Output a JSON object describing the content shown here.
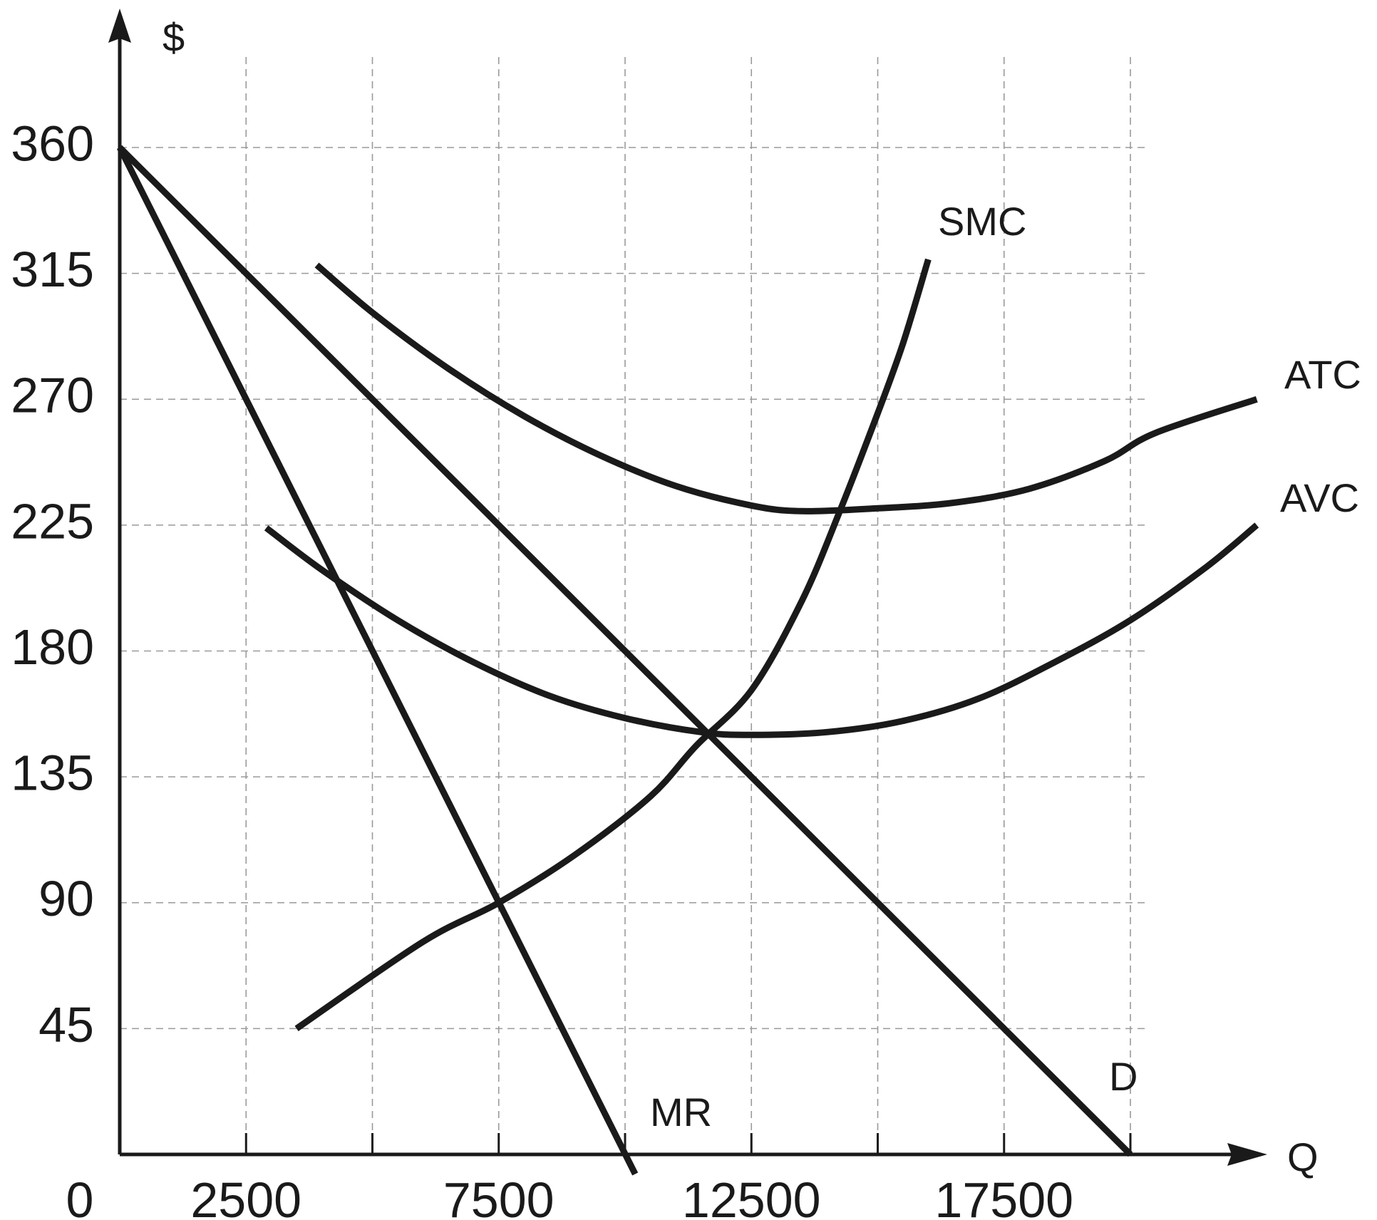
{
  "chart_data": {
    "type": "line",
    "title": "",
    "xlabel": "Q",
    "ylabel": "$",
    "xlim": [
      0,
      22500
    ],
    "ylim": [
      0,
      360
    ],
    "grid": true,
    "x_ticks": [
      2500,
      5000,
      7500,
      10000,
      12500,
      15000,
      17500,
      20000
    ],
    "x_tick_labels": [
      {
        "value": 0,
        "label": "0"
      },
      {
        "value": 2500,
        "label": "2500"
      },
      {
        "value": 7500,
        "label": "7500"
      },
      {
        "value": 12500,
        "label": "12500"
      },
      {
        "value": 17500,
        "label": "17500"
      }
    ],
    "y_ticks": [
      45,
      90,
      135,
      180,
      225,
      270,
      315,
      360
    ],
    "y_tick_labels": [
      "45",
      "90",
      "135",
      "180",
      "225",
      "270",
      "315",
      "360"
    ],
    "series": [
      {
        "name": "D",
        "points": [
          [
            0,
            360
          ],
          [
            20000,
            0
          ]
        ]
      },
      {
        "name": "MR",
        "points": [
          [
            0,
            360
          ],
          [
            10200,
            -7
          ]
        ]
      },
      {
        "name": "SMC",
        "points": [
          [
            3500,
            45
          ],
          [
            6000,
            76
          ],
          [
            7500,
            90
          ],
          [
            9000,
            107
          ],
          [
            10500,
            128
          ],
          [
            11400,
            146
          ],
          [
            12500,
            166
          ],
          [
            13500,
            198
          ],
          [
            14250,
            230
          ],
          [
            15000,
            265
          ],
          [
            15500,
            290
          ],
          [
            16000,
            320
          ]
        ]
      },
      {
        "name": "ATC",
        "points": [
          [
            3900,
            318
          ],
          [
            5000,
            301
          ],
          [
            6500,
            281
          ],
          [
            8000,
            264
          ],
          [
            9500,
            250
          ],
          [
            11000,
            239
          ],
          [
            12500,
            232
          ],
          [
            13500,
            230
          ],
          [
            15000,
            231
          ],
          [
            16500,
            233
          ],
          [
            18000,
            238
          ],
          [
            19500,
            248
          ],
          [
            20500,
            258
          ],
          [
            22500,
            270
          ]
        ]
      },
      {
        "name": "AVC",
        "points": [
          [
            2900,
            224
          ],
          [
            4000,
            209
          ],
          [
            5500,
            191
          ],
          [
            7000,
            176
          ],
          [
            8500,
            164
          ],
          [
            10000,
            156
          ],
          [
            11500,
            151
          ],
          [
            12500,
            150
          ],
          [
            14000,
            151
          ],
          [
            15500,
            155
          ],
          [
            17000,
            163
          ],
          [
            18500,
            176
          ],
          [
            20000,
            191
          ],
          [
            21500,
            210
          ],
          [
            22500,
            225
          ]
        ]
      }
    ],
    "series_labels": [
      {
        "name": "SMC",
        "text": "SMC"
      },
      {
        "name": "ATC",
        "text": "ATC"
      },
      {
        "name": "AVC",
        "text": "AVC"
      },
      {
        "name": "D",
        "text": "D"
      },
      {
        "name": "MR",
        "text": "MR"
      }
    ]
  }
}
